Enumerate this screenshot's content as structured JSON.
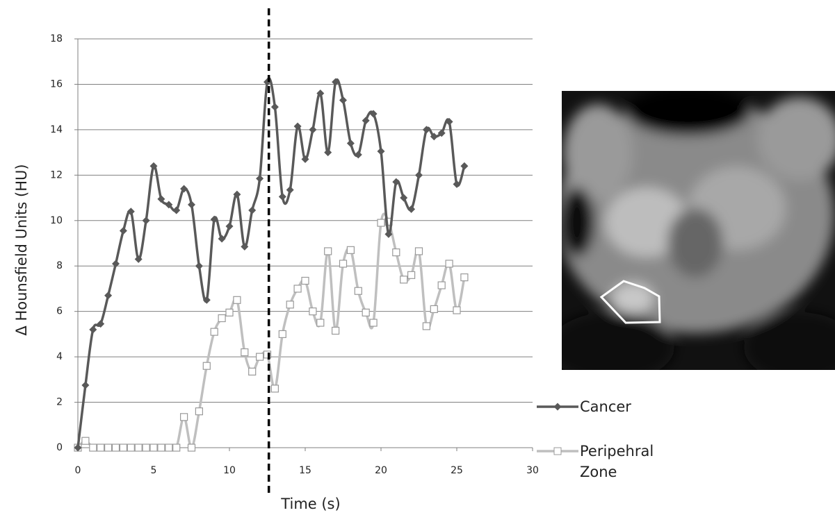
{
  "chart_data": {
    "type": "line",
    "xlabel": "Time (s)",
    "ylabel": "Δ Hounsfield Units (HU)",
    "x": [
      0,
      0.5,
      1,
      1.5,
      2,
      2.5,
      3,
      3.5,
      4,
      4.5,
      5,
      5.5,
      6,
      6.5,
      7,
      7.5,
      8,
      8.5,
      9,
      9.5,
      10,
      10.5,
      11,
      11.5,
      12,
      12.5,
      13,
      13.5,
      14,
      14.5,
      15,
      15.5,
      16,
      16.5,
      17,
      17.5,
      18,
      18.5,
      19,
      19.5,
      20,
      20.5,
      21,
      21.5,
      22,
      22.5,
      23,
      23.5,
      24,
      24.5,
      25,
      25.5
    ],
    "series": [
      {
        "name": "Cancer",
        "color": "#595959",
        "marker": "diamond",
        "values": [
          0,
          2.75,
          5.2,
          5.45,
          6.7,
          8.1,
          9.55,
          10.4,
          8.3,
          10.0,
          12.4,
          10.95,
          10.7,
          10.45,
          11.4,
          10.7,
          8.0,
          6.5,
          10.05,
          9.2,
          9.75,
          11.15,
          8.85,
          10.45,
          11.85,
          16.1,
          15.0,
          11.05,
          11.35,
          14.15,
          12.7,
          14.0,
          15.6,
          13.0,
          16.1,
          15.3,
          13.4,
          12.9,
          14.4,
          14.7,
          13.05,
          9.4,
          11.7,
          11.0,
          10.5,
          12.0,
          14.0,
          13.7,
          13.85,
          14.35,
          11.6,
          12.4
        ]
      },
      {
        "name": "Peripehral Zone",
        "color": "#bfbfbf",
        "marker": "square",
        "values": [
          0,
          0.3,
          0,
          0,
          0,
          0,
          0,
          0,
          0,
          0,
          0,
          0,
          0,
          0,
          1.35,
          0,
          1.6,
          3.6,
          5.1,
          5.7,
          5.95,
          6.5,
          4.2,
          3.35,
          4.0,
          4.1,
          2.6,
          5.0,
          6.3,
          7.0,
          7.35,
          6.0,
          5.5,
          8.65,
          5.15,
          8.1,
          8.7,
          6.9,
          5.95,
          5.5,
          9.9,
          9.95,
          8.6,
          7.4,
          7.6,
          8.65,
          5.35,
          6.1,
          7.15,
          8.1,
          6.05,
          7.5
        ]
      }
    ],
    "xlim": [
      0,
      30
    ],
    "xticks": [
      0,
      5,
      10,
      15,
      20,
      25,
      30
    ],
    "ylim": [
      0,
      18
    ],
    "yticks": [
      0,
      2,
      4,
      6,
      8,
      10,
      12,
      14,
      16,
      18
    ],
    "grid": true,
    "vline": 12.6
  }
}
